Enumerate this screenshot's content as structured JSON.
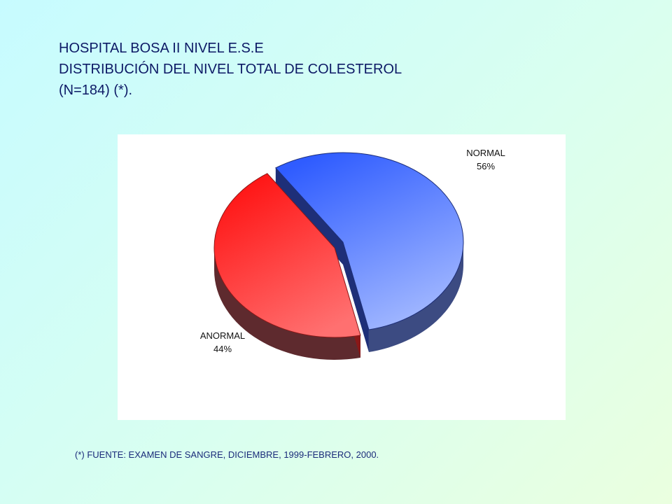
{
  "title": {
    "line1": "HOSPITAL BOSA II NIVEL E.S.E",
    "line2": "DISTRIBUCIÓN DEL NIVEL TOTAL DE COLESTEROL",
    "line3": "(N=184) (*)."
  },
  "chart_data": {
    "type": "pie",
    "style": "3d-exploded",
    "slices": [
      {
        "label": "NORMAL",
        "value": 56,
        "value_label": "56%",
        "color": "#3a66ff"
      },
      {
        "label": "ANORMAL",
        "value": 44,
        "value_label": "44%",
        "color": "#ff2a2a"
      }
    ]
  },
  "source": "(*) FUENTE: EXAMEN DE SANGRE, DICIEMBRE, 1999-FEBRERO,  2000."
}
